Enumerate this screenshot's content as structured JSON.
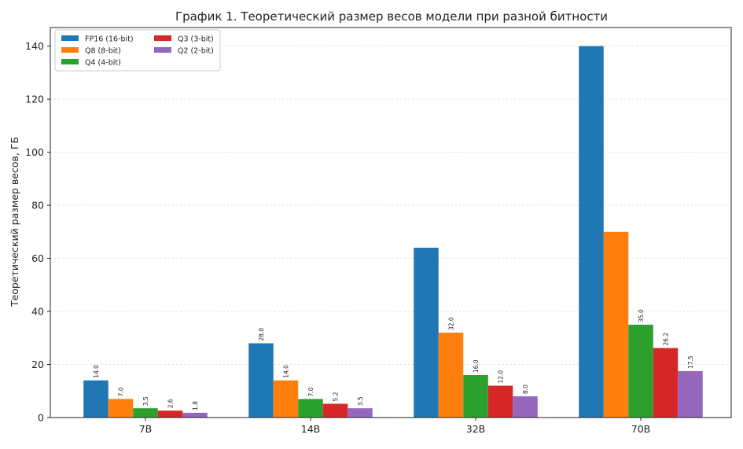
{
  "chart_data": {
    "type": "bar",
    "title": "График 1. Теоретический размер весов модели при разной битности",
    "xlabel": "",
    "ylabel": "Теоретический размер весов, ГБ",
    "categories": [
      "7B",
      "14B",
      "32B",
      "70B"
    ],
    "ylim": [
      0,
      147
    ],
    "yticks": [
      0,
      20,
      40,
      60,
      80,
      100,
      120,
      140
    ],
    "grid": true,
    "legend_position": "top-left",
    "series": [
      {
        "name": "FP16 (16-bit)",
        "color": "#1f77b4",
        "values": [
          14.0,
          28.0,
          64.0,
          140.0
        ],
        "labels": [
          "14.0",
          "28.0",
          "",
          ""
        ]
      },
      {
        "name": "Q8 (8-bit)",
        "color": "#ff7f0e",
        "values": [
          7.0,
          14.0,
          32.0,
          70.0
        ],
        "labels": [
          "7.0",
          "14.0",
          "32.0",
          ""
        ]
      },
      {
        "name": "Q4 (4-bit)",
        "color": "#2ca02c",
        "values": [
          3.5,
          7.0,
          16.0,
          35.0
        ],
        "labels": [
          "3.5",
          "7.0",
          "16.0",
          "35.0"
        ]
      },
      {
        "name": "Q3 (3-bit)",
        "color": "#d62728",
        "values": [
          2.6,
          5.2,
          12.0,
          26.2
        ],
        "labels": [
          "2.6",
          "5.2",
          "12.0",
          "26.2"
        ]
      },
      {
        "name": "Q2 (2-bit)",
        "color": "#9467bd",
        "values": [
          1.8,
          3.5,
          8.0,
          17.5
        ],
        "labels": [
          "1.8",
          "3.5",
          "8.0",
          "17.5"
        ]
      }
    ]
  }
}
